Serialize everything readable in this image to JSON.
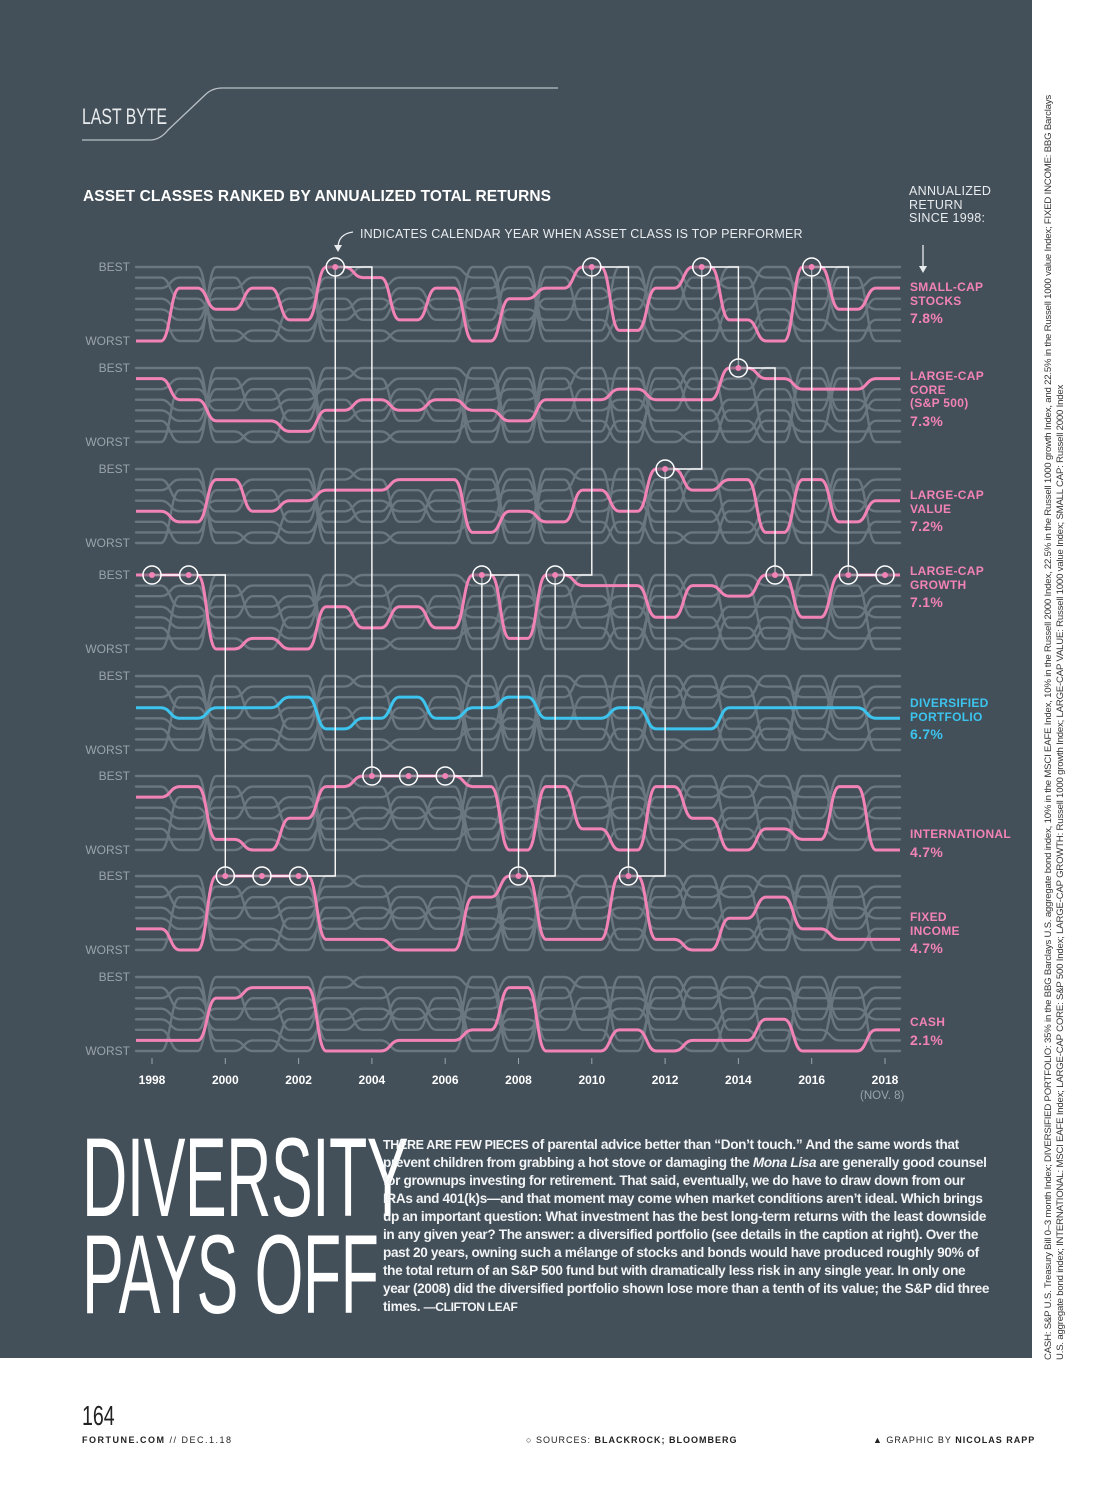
{
  "page": {
    "section": "LAST BYTE",
    "page_number": "164",
    "footer_site": "FORTUNE.COM",
    "footer_date": " // DEC.1.18",
    "sources_label": "SOURCES: ",
    "sources": "BLACKROCK; BLOOMBERG",
    "graphic_label": "GRAPHIC BY ",
    "graphic_by": "NICOLAS RAPP"
  },
  "caption": "CASH: S&P U.S. Treasury Bill 0–3 month Index; DIVERSIFIED PORTFOLIO: 35% in the BBG Barclays U.S. aggregate bond index, 10% in the MSCI EAFE Index, 10% in the Russell 2000 Index, 22.5% in the Russell 1000 growth Index, and 22.5% in the Russell 1000 value Index; FIXED INCOME: BBG Barclays U.S. aggregate bond index; INTERNATIONAL: MSCI EAFE Index; LARGE-CAP CORE: S&P 500 Index; LARGE-CAP GROWTH: Russell 1000 growth Index; LARGE-CAP VALUE: Russell 1000 value Index; SMALL CAP: Russell 2000 Index",
  "article": {
    "title_line1": "DIVERSITY",
    "title_line2": "PAYS OFF",
    "lead": "THERE ARE FEW PIECES",
    "body_1": " of parental advice better than “Don’t touch.” And the same words that prevent children from grabbing a hot stove or damaging the ",
    "body_italic": "Mona Lisa",
    "body_2": " are generally good counsel for grownups investing for retirement. That said, eventually, we do have to draw down from our IRAs and 401(k)s—and that moment may come when market conditions aren’t ideal. Which brings up an important question: What investment has the best long-term returns with the least downside in any given year? The answer: a diversified portfolio (see details in the caption at right). Over the past 20 years, owning such a mélange of stocks and bonds would have produced roughly 90% of the total return of an S&P 500 fund but with dramatically less risk in any single year. In only one year (2008) did the diversified portfolio shown lose more than a tenth of its value; the S&P did three times. ",
    "byline": "—CLIFTON LEAF"
  },
  "chart_data": {
    "type": "line",
    "subtype": "rank bump chart",
    "title": "ASSET CLASSES RANKED BY ANNUALIZED TOTAL RETURNS",
    "annotation": "INDICATES CALENDAR YEAR WHEN ASSET CLASS IS TOP PERFORMER",
    "return_header": "ANNUALIZED RETURN SINCE 1998:",
    "best_label": "BEST",
    "worst_label": "WORST",
    "x": [
      1998,
      1999,
      2000,
      2001,
      2002,
      2003,
      2004,
      2005,
      2006,
      2007,
      2008,
      2009,
      2010,
      2011,
      2012,
      2013,
      2014,
      2015,
      2016,
      2017,
      2018
    ],
    "x_tick_labels": [
      "1998",
      "2000",
      "2002",
      "2004",
      "2006",
      "2008",
      "2010",
      "2012",
      "2014",
      "2016",
      "2018"
    ],
    "x_last_note": "(NOV. 8)",
    "y_scale": "rank 1 (best) to 8 (worst)",
    "colors": {
      "background": "#434f59",
      "highlight": "#f283b6",
      "diversified": "#3cc4ee",
      "other_series": "#6b7780",
      "top_marker": "#ffffff"
    },
    "series": [
      {
        "name": "SMALL-CAP\nSTOCKS",
        "return": "7.8%",
        "color": "#f283b6",
        "ranks": [
          8,
          3,
          5,
          3,
          6,
          1,
          2,
          6,
          3,
          8,
          4,
          3,
          1,
          7,
          3,
          1,
          6,
          8,
          1,
          5,
          3
        ]
      },
      {
        "name": "LARGE-CAP\nCORE\n(S&P 500)",
        "return": "7.3%",
        "color": "#f283b6",
        "ranks": [
          2,
          4,
          6,
          6,
          7,
          5,
          4,
          5,
          4,
          5,
          6,
          4,
          4,
          3,
          4,
          4,
          1,
          2,
          3,
          3,
          2
        ]
      },
      {
        "name": "LARGE-CAP\nVALUE",
        "return": "7.2%",
        "color": "#f283b6",
        "ranks": [
          5,
          6,
          2,
          5,
          4,
          3,
          3,
          2,
          2,
          7,
          5,
          6,
          3,
          5,
          1,
          3,
          2,
          7,
          2,
          6,
          4
        ]
      },
      {
        "name": "LARGE-CAP\nGROWTH",
        "return": "7.1%",
        "color": "#f283b6",
        "ranks": [
          1,
          1,
          8,
          7,
          8,
          4,
          6,
          4,
          6,
          1,
          7,
          1,
          2,
          2,
          5,
          2,
          3,
          1,
          5,
          1,
          1
        ]
      },
      {
        "name": "DIVERSIFIED\nPORTFOLIO",
        "return": "6.7%",
        "color": "#3cc4ee",
        "ranks": [
          4,
          5,
          4,
          4,
          3,
          6,
          5,
          3,
          5,
          4,
          3,
          5,
          5,
          4,
          6,
          6,
          4,
          4,
          4,
          4,
          5
        ]
      },
      {
        "name": "INTERNATIONAL",
        "return": "4.7%",
        "color": "#f283b6",
        "ranks": [
          3,
          2,
          7,
          8,
          5,
          2,
          1,
          1,
          1,
          2,
          8,
          2,
          6,
          8,
          2,
          5,
          8,
          6,
          7,
          2,
          8
        ]
      },
      {
        "name": "FIXED\nINCOME",
        "return": "4.7%",
        "color": "#f283b6",
        "ranks": [
          6,
          8,
          1,
          1,
          1,
          7,
          7,
          8,
          8,
          3,
          1,
          7,
          7,
          1,
          7,
          8,
          5,
          3,
          6,
          7,
          7
        ]
      },
      {
        "name": "CASH",
        "return": "2.1%",
        "color": "#f283b6",
        "ranks": [
          7,
          7,
          3,
          2,
          2,
          8,
          8,
          7,
          7,
          6,
          2,
          8,
          8,
          6,
          8,
          7,
          7,
          5,
          8,
          8,
          6
        ]
      }
    ]
  }
}
